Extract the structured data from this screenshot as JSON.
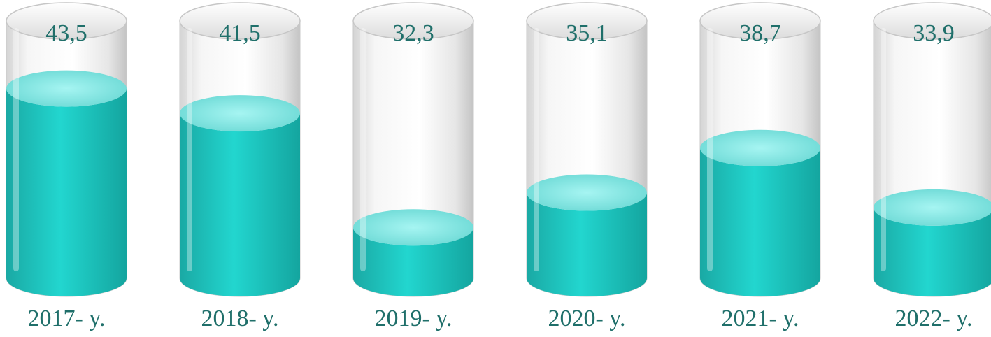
{
  "chart_data": {
    "type": "bar",
    "style": "3d-cylinder",
    "categories": [
      "2017- y.",
      "2018- y.",
      "2019- y.",
      "2020- y.",
      "2021- y.",
      "2022- y."
    ],
    "values": [
      43.5,
      41.5,
      32.3,
      35.1,
      38.7,
      33.9
    ],
    "value_labels": [
      "43,5",
      "41,5",
      "32,3",
      "35,1",
      "38,7",
      "33,9"
    ],
    "title": "",
    "xlabel": "",
    "ylabel": "",
    "colors": {
      "fill": "#1fc9c2",
      "fill_top": "#86ece9",
      "glass": "#eeeeee",
      "text": "#1f6f6a"
    }
  }
}
